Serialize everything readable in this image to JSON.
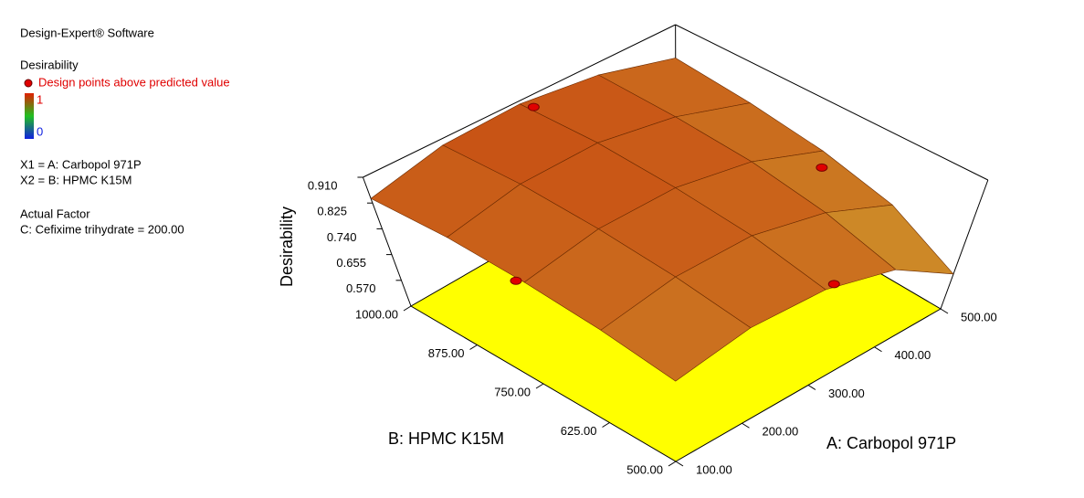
{
  "chart_data": {
    "type": "surface",
    "software": "Design-Expert® Software",
    "response": "Desirability",
    "colorbar_max": "1",
    "colorbar_min": "0",
    "factor_x1": "X1 = A: Carbopol 971P",
    "factor_x2": "X2 = B: HPMC K15M",
    "actual_factor_heading": "Actual Factor",
    "actual_factor": "C: Cefixime trihydrate = 200.00",
    "x_label": "A: Carbopol 971P",
    "y_label": "B: HPMC K15M",
    "z_label": "Desirability",
    "xlim": [
      100,
      500
    ],
    "ylim": [
      500,
      1000
    ],
    "zlim": [
      0.485,
      0.91
    ],
    "xticks": [
      {
        "value": 100,
        "label": "100.00"
      },
      {
        "value": 200,
        "label": "200.00"
      },
      {
        "value": 300,
        "label": "300.00"
      },
      {
        "value": 400,
        "label": "400.00"
      },
      {
        "value": 500,
        "label": "500.00"
      }
    ],
    "yticks": [
      {
        "value": 500,
        "label": "500.00"
      },
      {
        "value": 625,
        "label": "625.00"
      },
      {
        "value": 750,
        "label": "750.00"
      },
      {
        "value": 875,
        "label": "875.00"
      },
      {
        "value": 1000,
        "label": "1000.00"
      }
    ],
    "zticks": [
      {
        "value": 0.57,
        "label": "0.570"
      },
      0.655,
      {
        "value": 0.74,
        "label": "0.740"
      },
      0.825,
      {
        "value": 0.91,
        "label": "0.910"
      }
    ],
    "floor_color": "#ffff00",
    "surface": {
      "x": [
        100,
        200,
        300,
        400,
        500
      ],
      "y": [
        500,
        625,
        750,
        875,
        1000
      ],
      "z": [
        [
          0.75,
          0.8,
          0.8,
          0.74,
          0.6
        ],
        [
          0.79,
          0.84,
          0.85,
          0.8,
          0.7
        ],
        [
          0.82,
          0.87,
          0.88,
          0.84,
          0.75
        ],
        [
          0.84,
          0.89,
          0.9,
          0.86,
          0.78
        ],
        [
          0.84,
          0.89,
          0.9,
          0.87,
          0.8
        ]
      ]
    },
    "design_points": {
      "name": "Design points above predicted value",
      "color": "#e00000",
      "x": [
        305,
        426,
        213,
        451
      ],
      "y": [
        984,
        670,
        943,
        640
      ],
      "values": [
        0.9,
        0.87,
        0.485,
        0.485
      ]
    }
  }
}
